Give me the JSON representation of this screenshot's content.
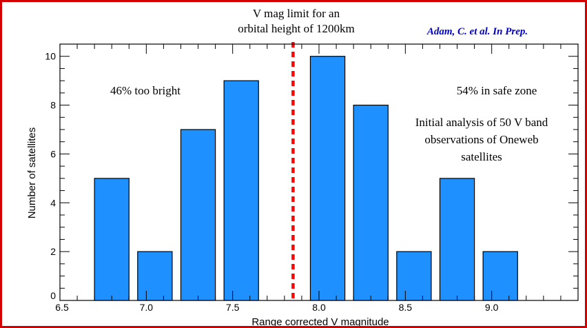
{
  "annotations": {
    "limit_line_1": "V mag limit for an",
    "limit_line_2": "orbital height of 1200km",
    "citation": "Adam, C. et al. In Prep.",
    "left_zone": "46% too bright",
    "right_zone": "54% in safe zone",
    "analysis_1": "Initial analysis of 50 V band",
    "analysis_2": "observations of Oneweb",
    "analysis_3": "satellites"
  },
  "colors": {
    "bar": "#1e90ff",
    "limit_line": "#ff0000",
    "citation": "#0000cc",
    "frame": "#d40000"
  },
  "chart_data": {
    "type": "bar",
    "xlabel": "Range corrected V magnitude",
    "ylabel": "Number of satellites",
    "xlim": [
      6.5,
      9.5
    ],
    "ylim": [
      0,
      10.5
    ],
    "x_ticks": [
      6.5,
      7.0,
      7.5,
      8.0,
      8.5,
      9.0
    ],
    "x_tick_labels": [
      "6.5",
      "7.0",
      "7.5",
      "8.0",
      "8.5",
      "9.0"
    ],
    "y_ticks": [
      0,
      2,
      4,
      6,
      8,
      10
    ],
    "y_tick_labels": [
      "0",
      "2",
      "4",
      "6",
      "8",
      "10"
    ],
    "bin_width": 0.25,
    "bins": [
      {
        "center": 6.8,
        "value": 5
      },
      {
        "center": 7.05,
        "value": 2
      },
      {
        "center": 7.3,
        "value": 7
      },
      {
        "center": 7.55,
        "value": 9
      },
      {
        "center": 8.05,
        "value": 10
      },
      {
        "center": 8.3,
        "value": 8
      },
      {
        "center": 8.55,
        "value": 2
      },
      {
        "center": 8.8,
        "value": 5
      },
      {
        "center": 9.05,
        "value": 2
      }
    ],
    "limit_x": 7.85,
    "grid": false
  }
}
